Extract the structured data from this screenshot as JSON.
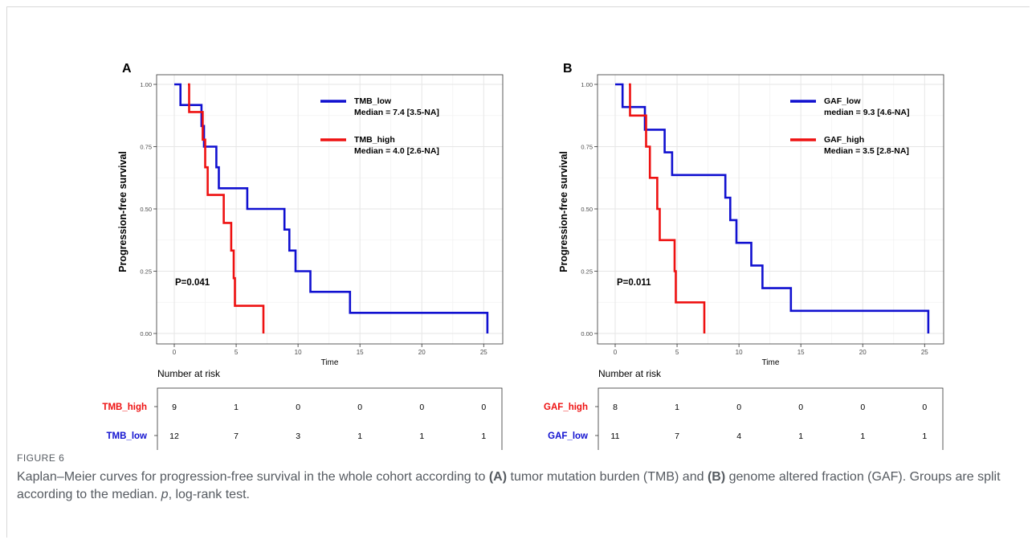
{
  "figure": {
    "label": "FIGURE 6",
    "caption_parts": [
      {
        "t": "Kaplan–Meier curves for progression-free survival in the whole cohort according to ",
        "s": "normal"
      },
      {
        "t": "(A)",
        "s": "bold"
      },
      {
        "t": " tumor mutation burden (TMB) and ",
        "s": "normal"
      },
      {
        "t": "(B)",
        "s": "bold"
      },
      {
        "t": " genome altered fraction (GAF). Groups are split according to the median. ",
        "s": "normal"
      },
      {
        "t": "p",
        "s": "italic"
      },
      {
        "t": ", log-rank test.",
        "s": "normal"
      }
    ]
  },
  "colors": {
    "low": "#1010d0",
    "high": "#ee1111"
  },
  "chart_data": [
    {
      "panel": "A",
      "type": "line",
      "xlabel": "Time",
      "ylabel": "Progression-free survival",
      "xlim": [
        0,
        25.5
      ],
      "ylim": [
        0,
        1
      ],
      "xticks": [
        0,
        5,
        10,
        15,
        20,
        25
      ],
      "yticks": [
        "0.00",
        "0.25",
        "0.50",
        "0.75",
        "1.00"
      ],
      "grid": true,
      "pvalue": "P=0.041",
      "legend": [
        {
          "name": "TMB_low",
          "text": "Median = 7.4 [3.5-NA]",
          "color": "#1010d0"
        },
        {
          "name": "TMB_high",
          "text": "Median = 4.0 [2.6-NA]",
          "color": "#ee1111"
        }
      ],
      "series": [
        {
          "name": "TMB_low",
          "color": "#1010d0",
          "steps": [
            [
              0,
              1
            ],
            [
              0.5,
              1
            ],
            [
              0.5,
              0.917
            ],
            [
              2.2,
              0.917
            ],
            [
              2.2,
              0.833
            ],
            [
              2.4,
              0.833
            ],
            [
              2.4,
              0.75
            ],
            [
              3.4,
              0.75
            ],
            [
              3.4,
              0.667
            ],
            [
              3.6,
              0.667
            ],
            [
              3.6,
              0.583
            ],
            [
              5.9,
              0.583
            ],
            [
              5.9,
              0.5
            ],
            [
              8.9,
              0.5
            ],
            [
              8.9,
              0.417
            ],
            [
              9.3,
              0.417
            ],
            [
              9.3,
              0.333
            ],
            [
              9.8,
              0.333
            ],
            [
              9.8,
              0.25
            ],
            [
              11.0,
              0.25
            ],
            [
              11.0,
              0.167
            ],
            [
              14.2,
              0.167
            ],
            [
              14.2,
              0.083
            ],
            [
              25.3,
              0.083
            ],
            [
              25.3,
              0
            ]
          ]
        },
        {
          "name": "TMB_high",
          "color": "#ee1111",
          "steps": [
            [
              1.1,
              1
            ],
            [
              1.2,
              1
            ],
            [
              1.2,
              0.889
            ],
            [
              2.3,
              0.889
            ],
            [
              2.3,
              0.778
            ],
            [
              2.5,
              0.778
            ],
            [
              2.5,
              0.667
            ],
            [
              2.7,
              0.667
            ],
            [
              2.7,
              0.556
            ],
            [
              4.0,
              0.556
            ],
            [
              4.0,
              0.444
            ],
            [
              4.6,
              0.444
            ],
            [
              4.6,
              0.333
            ],
            [
              4.8,
              0.333
            ],
            [
              4.8,
              0.222
            ],
            [
              4.9,
              0.222
            ],
            [
              4.9,
              0.111
            ],
            [
              7.2,
              0.111
            ],
            [
              7.2,
              0
            ]
          ]
        }
      ],
      "risk_table": {
        "title": "Number at risk",
        "rows": [
          {
            "name": "TMB_high",
            "color": "#ee1111",
            "values": [
              "9",
              "1",
              "0",
              "0",
              "0",
              "0"
            ]
          },
          {
            "name": "TMB_low",
            "color": "#1010d0",
            "values": [
              "12",
              "7",
              "3",
              "1",
              "1",
              "1"
            ]
          }
        ]
      }
    },
    {
      "panel": "B",
      "type": "line",
      "xlabel": "Time",
      "ylabel": "Progression-free survival",
      "xlim": [
        0,
        25.5
      ],
      "ylim": [
        0,
        1
      ],
      "xticks": [
        0,
        5,
        10,
        15,
        20,
        25
      ],
      "yticks": [
        "0.00",
        "0.25",
        "0.50",
        "0.75",
        "1.00"
      ],
      "grid": true,
      "pvalue": "P=0.011",
      "legend": [
        {
          "name": "GAF_low",
          "text": "median = 9.3 [4.6-NA]",
          "color": "#1010d0"
        },
        {
          "name": "GAF_high",
          "text": "Median = 3.5 [2.8-NA]",
          "color": "#ee1111"
        }
      ],
      "series": [
        {
          "name": "GAF_low",
          "color": "#1010d0",
          "steps": [
            [
              0,
              1
            ],
            [
              0.6,
              1
            ],
            [
              0.6,
              0.909
            ],
            [
              2.4,
              0.909
            ],
            [
              2.4,
              0.818
            ],
            [
              4.0,
              0.818
            ],
            [
              4.0,
              0.727
            ],
            [
              4.6,
              0.727
            ],
            [
              4.6,
              0.636
            ],
            [
              8.9,
              0.636
            ],
            [
              8.9,
              0.545
            ],
            [
              9.3,
              0.545
            ],
            [
              9.3,
              0.455
            ],
            [
              9.8,
              0.455
            ],
            [
              9.8,
              0.364
            ],
            [
              11.0,
              0.364
            ],
            [
              11.0,
              0.273
            ],
            [
              11.9,
              0.273
            ],
            [
              11.9,
              0.182
            ],
            [
              14.2,
              0.182
            ],
            [
              14.2,
              0.091
            ],
            [
              25.3,
              0.091
            ],
            [
              25.3,
              0
            ]
          ]
        },
        {
          "name": "GAF_high",
          "color": "#ee1111",
          "steps": [
            [
              1.1,
              1
            ],
            [
              1.2,
              1
            ],
            [
              1.2,
              0.875
            ],
            [
              2.5,
              0.875
            ],
            [
              2.5,
              0.75
            ],
            [
              2.8,
              0.75
            ],
            [
              2.8,
              0.625
            ],
            [
              3.4,
              0.625
            ],
            [
              3.4,
              0.5
            ],
            [
              3.6,
              0.5
            ],
            [
              3.6,
              0.375
            ],
            [
              4.8,
              0.375
            ],
            [
              4.8,
              0.25
            ],
            [
              4.9,
              0.25
            ],
            [
              4.9,
              0.125
            ],
            [
              7.2,
              0.125
            ],
            [
              7.2,
              0
            ]
          ]
        }
      ],
      "risk_table": {
        "title": "Number at risk",
        "rows": [
          {
            "name": "GAF_high",
            "color": "#ee1111",
            "values": [
              "8",
              "1",
              "0",
              "0",
              "0",
              "0"
            ]
          },
          {
            "name": "GAF_low",
            "color": "#1010d0",
            "values": [
              "11",
              "7",
              "4",
              "1",
              "1",
              "1"
            ]
          }
        ]
      }
    }
  ]
}
